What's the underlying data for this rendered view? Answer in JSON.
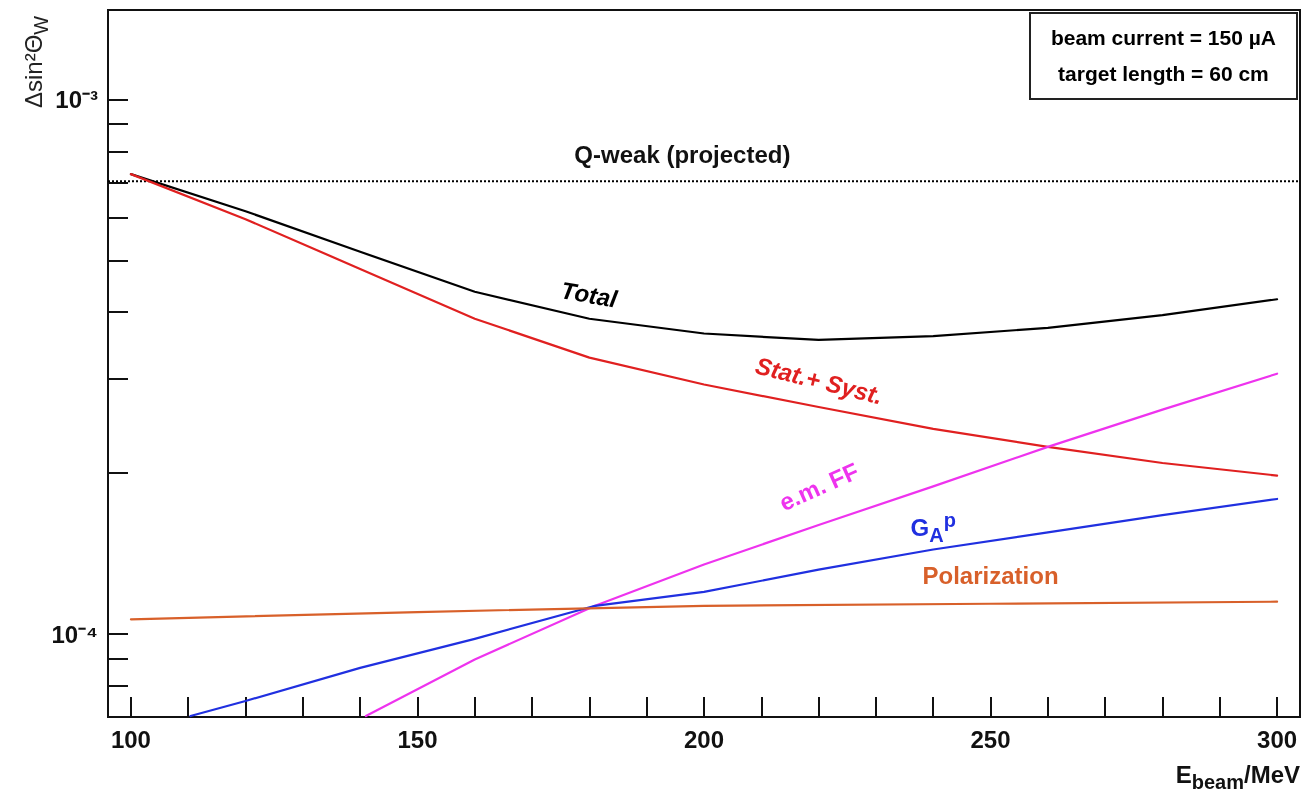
{
  "chart_data": {
    "type": "line",
    "xlabel": "E$_{beam}$/MeV",
    "ylabel": "Δsin²Θ$_{W}$",
    "log": "y",
    "marker": "none",
    "xlim": [
      96,
      304
    ],
    "ylim": [
      7e-05,
      0.00147
    ],
    "xticks": [
      100,
      150,
      200,
      250,
      300
    ],
    "yticks": [
      {
        "value": 0.0001,
        "label": "10⁻⁴"
      },
      {
        "value": 0.001,
        "label": "10⁻³"
      }
    ],
    "ref_lines": [
      {
        "axis": "y",
        "value": 0.000703,
        "label": "Q-weak (projected)",
        "color": "#000000",
        "line_style": "dotted"
      }
    ],
    "annotations": [
      "beam current = 150 µA",
      "target length = 60 cm"
    ],
    "series": [
      {
        "name": "Total",
        "color": "#000000",
        "x": [
          100,
          120,
          140,
          160,
          180,
          200,
          220,
          240,
          260,
          280,
          300
        ],
        "values": [
          0.000725,
          0.000618,
          0.000519,
          0.000437,
          0.000389,
          0.000365,
          0.000355,
          0.000361,
          0.000374,
          0.000395,
          0.000423
        ]
      },
      {
        "name": "Stat.+ Syst.",
        "color": "#e02020",
        "x": [
          100,
          120,
          140,
          160,
          180,
          200,
          220,
          240,
          260,
          280,
          300
        ],
        "values": [
          0.000725,
          0.000597,
          0.000482,
          0.000389,
          0.000329,
          0.000293,
          0.000266,
          0.000242,
          0.000224,
          0.000209,
          0.000198
        ]
      },
      {
        "name": "e.m. FF",
        "color": "#ee33ee",
        "x": [
          141,
          160,
          181,
          200,
          220,
          240,
          260,
          280,
          300
        ],
        "values": [
          7.03e-05,
          8.97e-05,
          0.000113,
          0.000135,
          0.00016,
          0.000189,
          0.000224,
          0.000263,
          0.000307
        ]
      },
      {
        "name": "G$_{A}$$^{p}$",
        "color": "#2030e0",
        "x": [
          110.4,
          120,
          140,
          160,
          181,
          200,
          220,
          240,
          260,
          280,
          300
        ],
        "values": [
          7.03e-05,
          7.5e-05,
          8.65e-05,
          9.8e-05,
          0.000113,
          0.00012,
          0.000132,
          0.000144,
          0.000155,
          0.000167,
          0.000179
        ]
      },
      {
        "name": "Polarization",
        "color": "#d8602a",
        "x": [
          100,
          150,
          200,
          250,
          300
        ],
        "values": [
          0.0001066,
          0.00011,
          0.000113,
          0.000114,
          0.000115
        ]
      }
    ]
  }
}
